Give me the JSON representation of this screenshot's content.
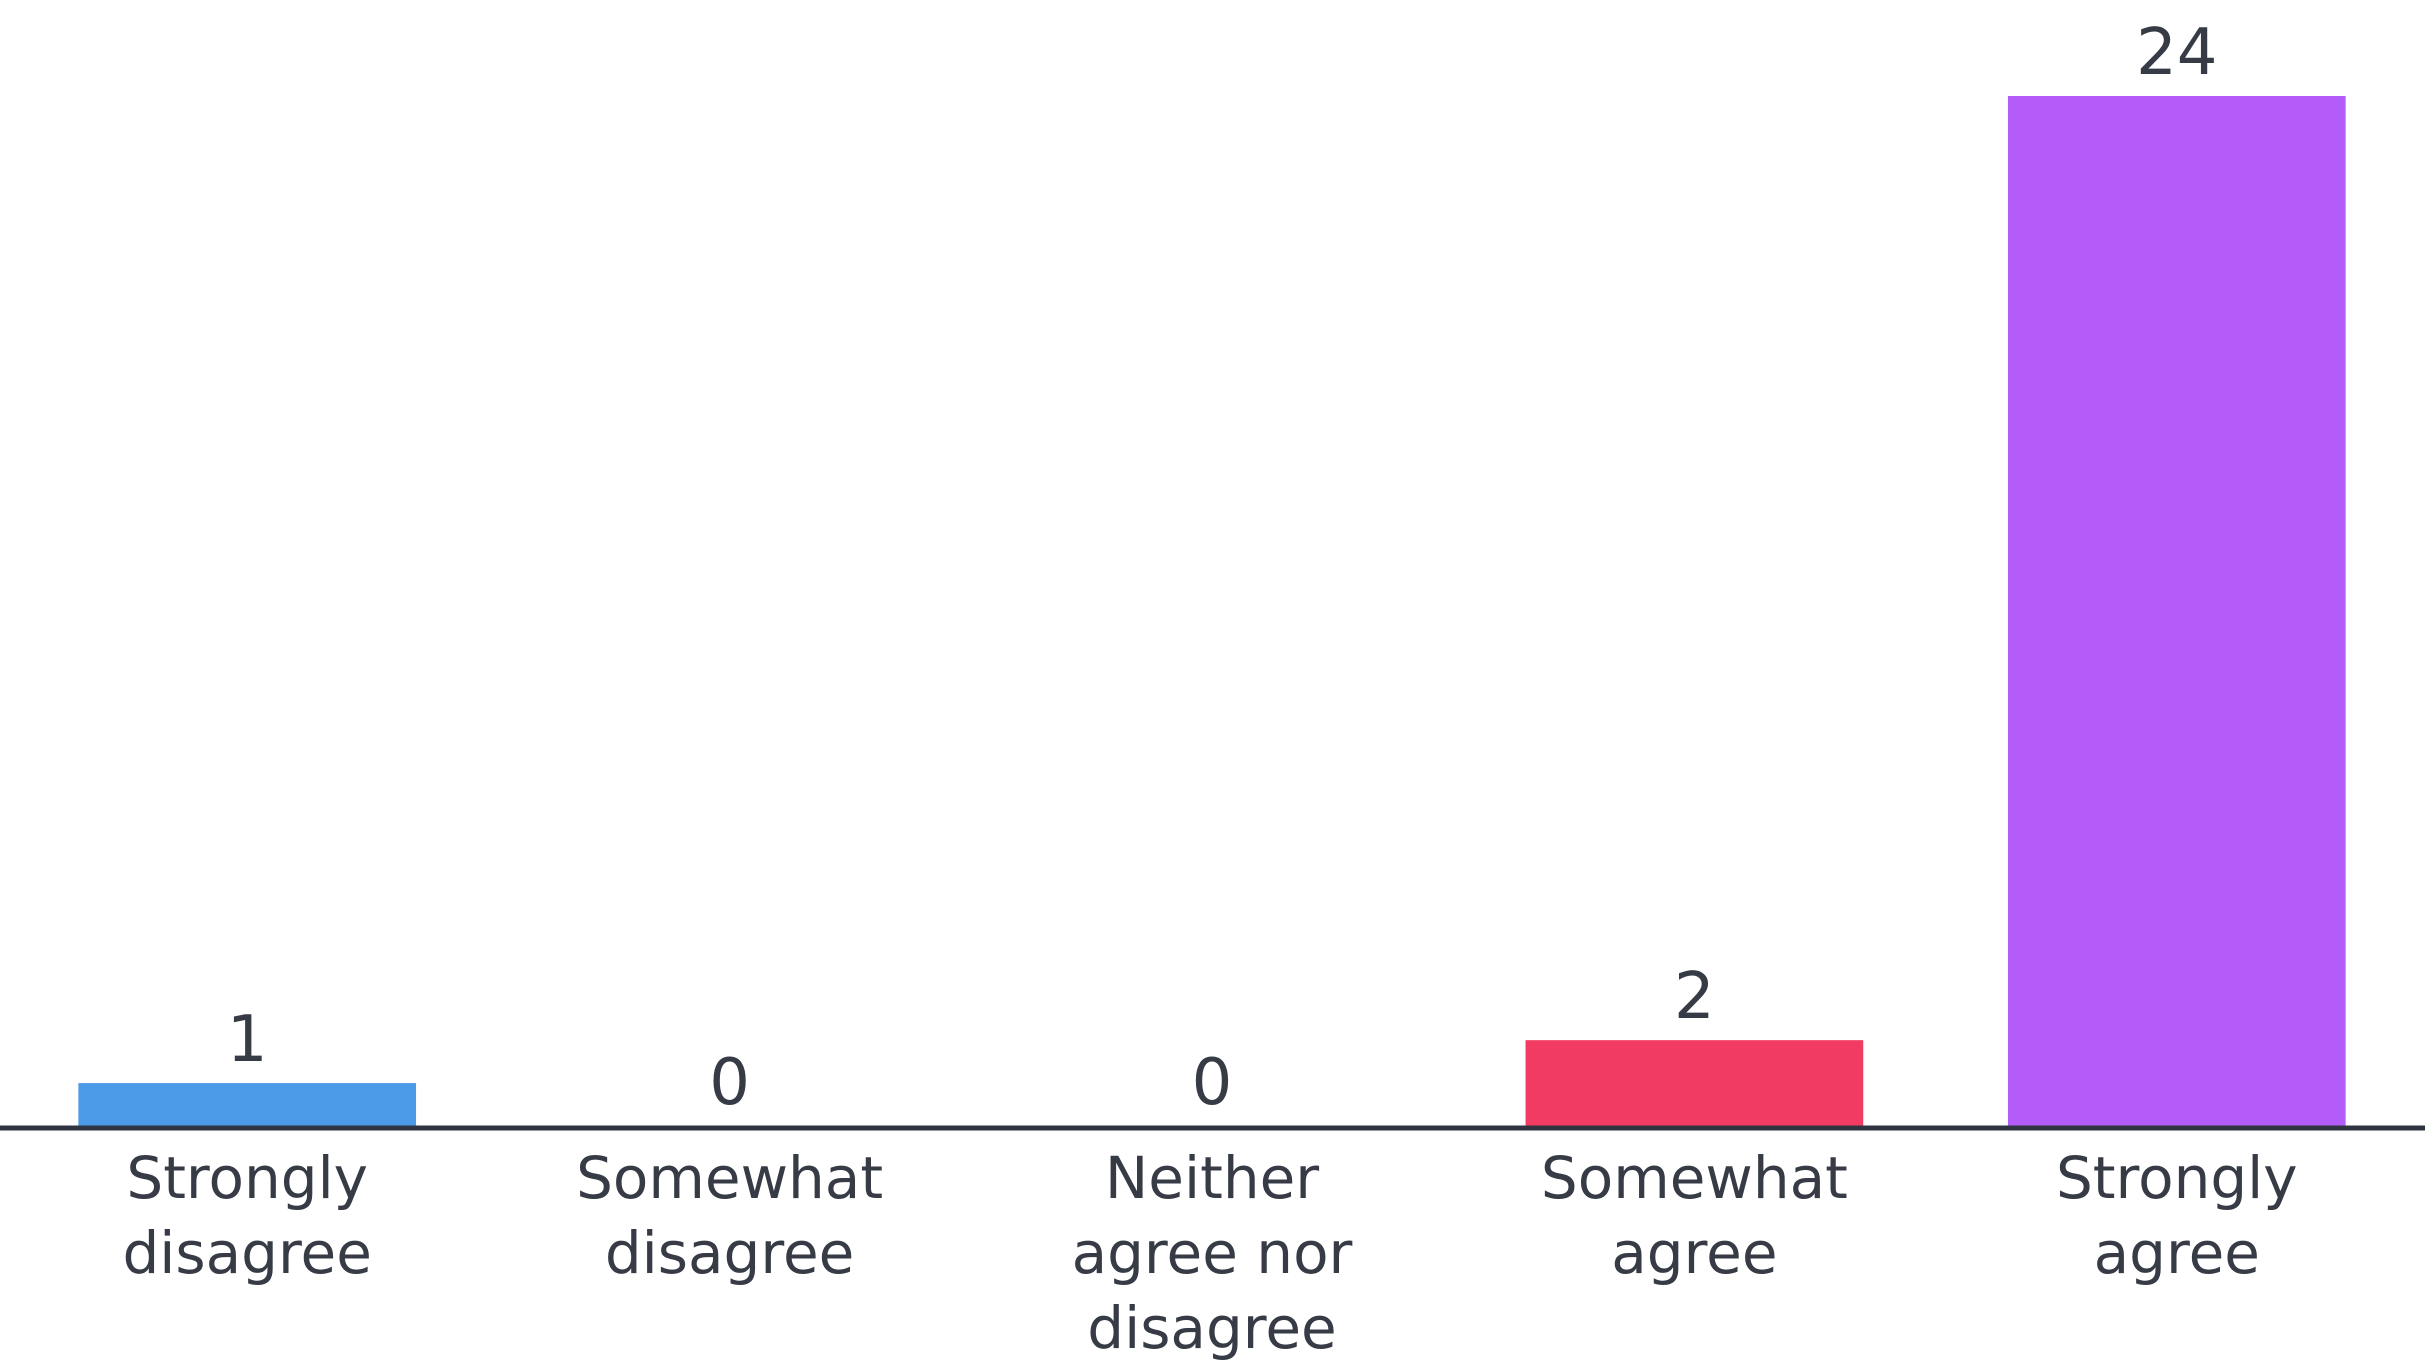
{
  "chart_data": {
    "type": "bar",
    "categories": [
      "Strongly disagree",
      "Somewhat disagree",
      "Neither agree nor disagree",
      "Somewhat agree",
      "Strongly agree"
    ],
    "values": [
      1,
      0,
      0,
      2,
      24
    ],
    "colors": [
      "#4b9be8",
      null,
      null,
      "#f23b62",
      "#b45cf9"
    ]
  }
}
